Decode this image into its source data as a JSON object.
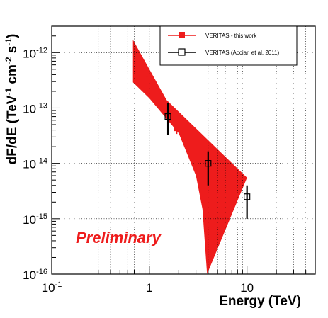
{
  "chart_data": {
    "type": "scatter",
    "title": "",
    "xlabel": "Energy (TeV)",
    "ylabel_parts": [
      "dF/dE (TeV",
      "-1",
      " cm",
      "-2",
      " s",
      "-1",
      ")"
    ],
    "xscale": "log",
    "yscale": "log",
    "xlim": [
      0.1,
      50
    ],
    "ylim": [
      1e-16,
      3e-12
    ],
    "grid": true,
    "legend_placement": "top-right",
    "x_ticks": [
      {
        "value": 0.1,
        "base": "10",
        "exp": "-1"
      },
      {
        "value": 1,
        "base": "1",
        "exp": ""
      },
      {
        "value": 10,
        "base": "10",
        "exp": ""
      }
    ],
    "y_ticks": [
      {
        "value": 1e-16,
        "base": "10",
        "exp": "-16"
      },
      {
        "value": 1e-15,
        "base": "10",
        "exp": "-15"
      },
      {
        "value": 1e-14,
        "base": "10",
        "exp": "-14"
      },
      {
        "value": 1e-13,
        "base": "10",
        "exp": "-13"
      },
      {
        "value": 1e-12,
        "base": "10",
        "exp": "-12"
      }
    ],
    "annotation": "Preliminary",
    "band": {
      "color": "#ee1c1c",
      "upper": [
        [
          0.68,
          1.7e-12
        ],
        [
          0.9,
          7e-13
        ],
        [
          1.5,
          1.4e-13
        ],
        [
          10,
          5.5e-15
        ]
      ],
      "lower": [
        [
          0.68,
          2.9e-13
        ],
        [
          1.0,
          1.5e-13
        ],
        [
          2.0,
          3.5e-14
        ],
        [
          3.0,
          6e-15
        ],
        [
          3.5,
          1.5e-15
        ],
        [
          3.9,
          1e-16
        ]
      ]
    },
    "series": [
      {
        "name": "VERITAS - this work",
        "color": "#ee1c1c",
        "marker": "filled-square",
        "points": [
          {
            "x": 0.78,
            "y": 6.5e-13,
            "ylo": 5.5e-13,
            "yhi": 7.8e-13
          },
          {
            "x": 0.95,
            "y": 3.2e-13,
            "ylo": 2.8e-13,
            "yhi": 3.7e-13
          },
          {
            "x": 1.2,
            "y": 2e-13,
            "ylo": 1.7e-13,
            "yhi": 2.3e-13
          },
          {
            "x": 1.5,
            "y": 9e-14,
            "ylo": 7.5e-14,
            "yhi": 1.08e-13
          },
          {
            "x": 1.9,
            "y": 4.3e-14,
            "ylo": 3.4e-14,
            "yhi": 5.3e-14
          }
        ]
      },
      {
        "name": "VERITAS (Acciari et al, 2011)",
        "color": "#000000",
        "marker": "open-square",
        "points": [
          {
            "x": 1.55,
            "y": 7e-14,
            "ylo": 3.3e-14,
            "yhi": 1.25e-13
          },
          {
            "x": 4.0,
            "y": 1e-14,
            "ylo": 4e-15,
            "yhi": 1.65e-14
          },
          {
            "x": 10.0,
            "y": 2.5e-15,
            "ylo": 1e-15,
            "yhi": 4e-15
          }
        ]
      }
    ]
  }
}
